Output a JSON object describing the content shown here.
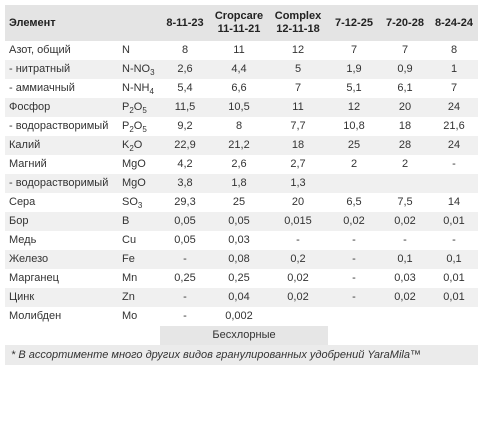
{
  "table": {
    "header": {
      "element": "Элемент",
      "products": [
        "8-11-23",
        "Cropcare 11-11-21",
        "Complex 12-11-18",
        "7-12-25",
        "7-20-28",
        "8-24-24"
      ]
    },
    "rows": [
      {
        "name": "Азот, общий",
        "formula": "N",
        "values": [
          "8",
          "11",
          "12",
          "7",
          "7",
          "8"
        ]
      },
      {
        "name": "- нитратный",
        "formula": "N-NO3",
        "values": [
          "2,6",
          "4,4",
          "5",
          "1,9",
          "0,9",
          "1"
        ]
      },
      {
        "name": "- аммиачный",
        "formula": "N-NH4",
        "values": [
          "5,4",
          "6,6",
          "7",
          "5,1",
          "6,1",
          "7"
        ]
      },
      {
        "name": "Фосфор",
        "formula": "P2O5",
        "values": [
          "11,5",
          "10,5",
          "11",
          "12",
          "20",
          "24"
        ]
      },
      {
        "name": "- водорастворимый",
        "formula": "P2O5",
        "values": [
          "9,2",
          "8",
          "7,7",
          "10,8",
          "18",
          "21,6"
        ]
      },
      {
        "name": "Калий",
        "formula": "K2O",
        "values": [
          "22,9",
          "21,2",
          "18",
          "25",
          "28",
          "24"
        ]
      },
      {
        "name": "Магний",
        "formula": "MgO",
        "values": [
          "4,2",
          "2,6",
          "2,7",
          "2",
          "2",
          "-"
        ]
      },
      {
        "name": "- водорастворимый",
        "formula": "MgO",
        "values": [
          "3,8",
          "1,8",
          "1,3",
          null,
          null,
          null
        ]
      },
      {
        "name": "Сера",
        "formula": "SO3",
        "values": [
          "29,3",
          "25",
          "20",
          "6,5",
          "7,5",
          "14"
        ]
      },
      {
        "name": "Бор",
        "formula": "B",
        "values": [
          "0,05",
          "0,05",
          "0,015",
          "0,02",
          "0,02",
          "0,01"
        ]
      },
      {
        "name": "Медь",
        "formula": "Cu",
        "values": [
          "0,05",
          "0,03",
          "-",
          "-",
          "-",
          "-"
        ]
      },
      {
        "name": "Железо",
        "formula": "Fe",
        "values": [
          "-",
          "0,08",
          "0,2",
          "-",
          "0,1",
          "0,1"
        ]
      },
      {
        "name": "Марганец",
        "formula": "Mn",
        "values": [
          "0,25",
          "0,25",
          "0,02",
          "-",
          "0,03",
          "0,01"
        ]
      },
      {
        "name": "Цинк",
        "formula": "Zn",
        "values": [
          "-",
          "0,04",
          "0,02",
          "-",
          "0,02",
          "0,01"
        ]
      },
      {
        "name": "Молибден",
        "formula": "Mo",
        "values": [
          "-",
          "0,002",
          null,
          null,
          null,
          null
        ]
      }
    ],
    "group_label": "Бесхлорные",
    "footnote": "* В ассортименте много других видов гранулированных удобрений YaraMila™"
  }
}
